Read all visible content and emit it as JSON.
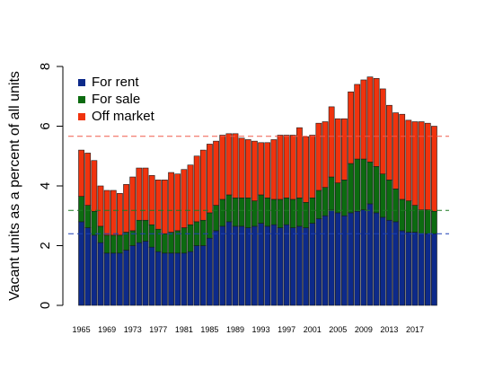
{
  "chart_data": {
    "type": "bar",
    "stacked": true,
    "title": "",
    "xlabel": "",
    "ylabel": "Vacant units as a percent of all units",
    "ylim": [
      0,
      8
    ],
    "y_ticks": [
      "0",
      "2",
      "4",
      "6",
      "8"
    ],
    "x_tick_labels": [
      "1965",
      "1969",
      "1973",
      "1977",
      "1981",
      "1985",
      "1989",
      "1993",
      "1997",
      "2001",
      "2005",
      "2009",
      "2013",
      "2017"
    ],
    "grid": false,
    "legend_position": "top-left",
    "categories": [
      1965,
      1966,
      1967,
      1968,
      1969,
      1970,
      1971,
      1972,
      1973,
      1974,
      1975,
      1976,
      1977,
      1978,
      1979,
      1980,
      1981,
      1982,
      1983,
      1984,
      1985,
      1986,
      1987,
      1988,
      1989,
      1990,
      1991,
      1992,
      1993,
      1994,
      1995,
      1996,
      1997,
      1998,
      1999,
      2000,
      2001,
      2002,
      2003,
      2004,
      2005,
      2006,
      2007,
      2008,
      2009,
      2010,
      2011,
      2012,
      2013,
      2014,
      2015,
      2016,
      2017,
      2018,
      2019,
      2020
    ],
    "series": [
      {
        "name": "For rent",
        "color": "#0d2a8a",
        "values": [
          2.8,
          2.6,
          2.35,
          2.1,
          1.75,
          1.75,
          1.75,
          1.85,
          2.0,
          2.1,
          2.15,
          1.95,
          1.8,
          1.75,
          1.75,
          1.75,
          1.75,
          1.8,
          2.0,
          2.0,
          2.25,
          2.5,
          2.65,
          2.8,
          2.65,
          2.65,
          2.6,
          2.65,
          2.75,
          2.65,
          2.7,
          2.6,
          2.7,
          2.6,
          2.65,
          2.6,
          2.75,
          2.9,
          3.0,
          3.2,
          3.1,
          3.0,
          3.1,
          3.15,
          3.2,
          3.4,
          3.1,
          2.95,
          2.85,
          2.8,
          2.5,
          2.45,
          2.45,
          2.4,
          2.4,
          2.4
        ]
      },
      {
        "name": "For sale",
        "color": "#0c6b10",
        "values": [
          0.85,
          0.75,
          0.8,
          0.55,
          0.6,
          0.6,
          0.6,
          0.6,
          0.5,
          0.75,
          0.7,
          0.75,
          0.75,
          0.65,
          0.7,
          0.75,
          0.85,
          0.9,
          0.8,
          0.85,
          0.85,
          0.85,
          0.9,
          0.9,
          0.95,
          0.95,
          1.0,
          0.85,
          0.95,
          0.95,
          0.85,
          0.95,
          0.9,
          0.95,
          0.95,
          0.85,
          0.85,
          0.95,
          0.95,
          1.1,
          1.0,
          1.2,
          1.65,
          1.75,
          1.7,
          1.4,
          1.55,
          1.45,
          1.35,
          1.1,
          1.05,
          1.05,
          0.9,
          0.8,
          0.8,
          0.75
        ]
      },
      {
        "name": "Off market",
        "color": "#f0330e",
        "values": [
          1.55,
          1.75,
          1.7,
          1.35,
          1.5,
          1.5,
          1.4,
          1.6,
          1.8,
          1.75,
          1.75,
          1.65,
          1.65,
          1.8,
          2.0,
          1.9,
          1.95,
          2.0,
          2.2,
          2.35,
          2.3,
          2.15,
          2.15,
          2.05,
          2.15,
          2.0,
          1.95,
          2.0,
          1.75,
          1.85,
          2.0,
          2.15,
          2.1,
          2.15,
          2.35,
          2.2,
          2.1,
          2.25,
          2.2,
          2.35,
          2.15,
          2.05,
          2.4,
          2.5,
          2.65,
          2.85,
          2.95,
          2.85,
          2.5,
          2.55,
          2.85,
          2.7,
          2.8,
          2.95,
          2.9,
          2.85
        ]
      }
    ],
    "reference_lines": [
      {
        "series": "For rent",
        "value": 2.4,
        "color": "#1a3fb5"
      },
      {
        "series": "For sale",
        "value": 3.18,
        "color": "#1f7a22"
      },
      {
        "series": "Off market",
        "value": 5.66,
        "color": "#f05a4a"
      }
    ]
  }
}
